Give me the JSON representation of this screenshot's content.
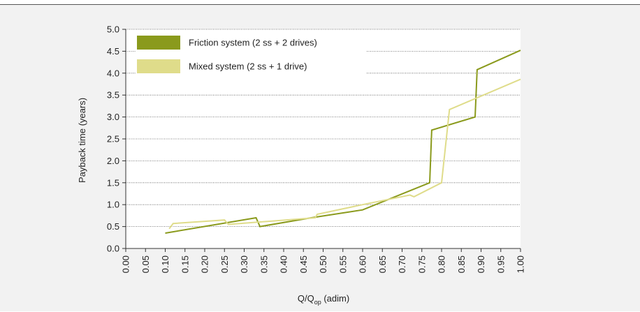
{
  "chart_data": {
    "type": "line",
    "xlabel": {
      "main": "Q/Q",
      "sub": "op",
      "rest": " (adim)"
    },
    "ylabel": "Payback time (years)",
    "xlim": [
      0,
      1
    ],
    "ylim": [
      0,
      5
    ],
    "x_ticks": [
      "0.00",
      "0.05",
      "0.10",
      "0.15",
      "0.20",
      "0.25",
      "0.30",
      "0.35",
      "0.40",
      "0.45",
      "0.50",
      "0.55",
      "0.60",
      "0.65",
      "0.70",
      "0.75",
      "0.80",
      "0.85",
      "0.90",
      "0.95",
      "1.00"
    ],
    "y_ticks": [
      "0.0",
      "0.5",
      "1.0",
      "1.5",
      "2.0",
      "2.5",
      "3.0",
      "3.5",
      "4.0",
      "4.5",
      "5.0"
    ],
    "grid": {
      "horizontal": true,
      "style": "dotted"
    },
    "legend_position": "top-left",
    "series": [
      {
        "name": "Friction system (2 ss + 2 drives)",
        "color": "#8a9a1c",
        "points": [
          [
            0.1,
            0.35
          ],
          [
            0.33,
            0.7
          ],
          [
            0.34,
            0.5
          ],
          [
            0.47,
            0.7
          ],
          [
            0.6,
            0.88
          ],
          [
            0.77,
            1.5
          ],
          [
            0.775,
            2.7
          ],
          [
            0.885,
            3.0
          ],
          [
            0.89,
            4.08
          ],
          [
            1.0,
            4.52
          ]
        ]
      },
      {
        "name": "Mixed system (2 ss + 1 drive)",
        "color": "#dfdc8a",
        "points": [
          [
            0.11,
            0.45
          ],
          [
            0.12,
            0.57
          ],
          [
            0.25,
            0.65
          ],
          [
            0.26,
            0.55
          ],
          [
            0.48,
            0.7
          ],
          [
            0.485,
            0.78
          ],
          [
            0.6,
            1.0
          ],
          [
            0.72,
            1.22
          ],
          [
            0.73,
            1.18
          ],
          [
            0.8,
            1.5
          ],
          [
            0.82,
            3.17
          ],
          [
            1.0,
            3.86
          ]
        ]
      }
    ]
  }
}
